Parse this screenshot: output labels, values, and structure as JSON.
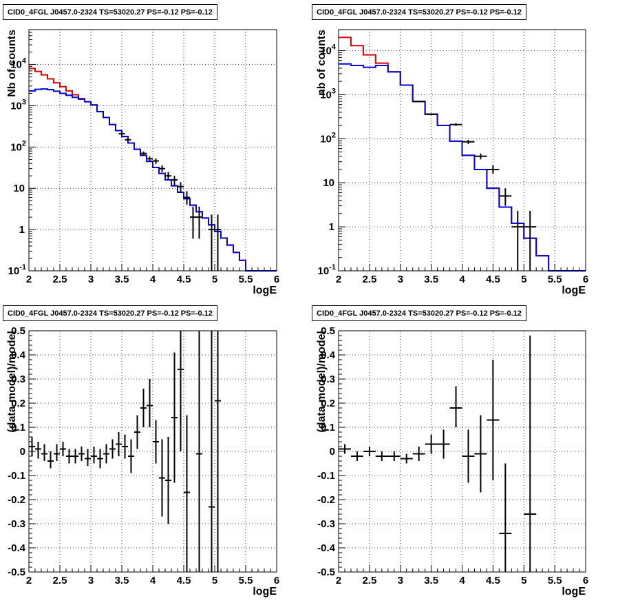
{
  "chart_data": [
    {
      "type": "line",
      "title": "CID0_4FGL J0457.0-2324 TS=53020.27 PS=-0.12 PS=-0.12",
      "xlabel": "logE",
      "ylabel": "Nb of counts",
      "xlim": [
        2,
        6
      ],
      "ylim": [
        0.1,
        70000
      ],
      "yscale": "log",
      "xticks": [
        "2",
        "2.5",
        "3",
        "3.5",
        "4",
        "4.5",
        "5",
        "5.5",
        "6"
      ],
      "yticks": [
        {
          "v": 0.1,
          "label": "10",
          "exp": "-1"
        },
        {
          "v": 1,
          "label": "1",
          "exp": ""
        },
        {
          "v": 10,
          "label": "10",
          "exp": ""
        },
        {
          "v": 100,
          "label": "10",
          "exp": "2"
        },
        {
          "v": 1000,
          "label": "10",
          "exp": "3"
        },
        {
          "v": 10000,
          "label": "10",
          "exp": "4"
        }
      ],
      "grid": true,
      "bin_edges": [
        2.0,
        2.1,
        2.2,
        2.3,
        2.4,
        2.5,
        2.6,
        2.7,
        2.8,
        2.9,
        3.0,
        3.1,
        3.2,
        3.3,
        3.4,
        3.5,
        3.6,
        3.7,
        3.8,
        3.9,
        4.0,
        4.1,
        4.2,
        4.3,
        4.4,
        4.5,
        4.6,
        4.7,
        4.8,
        4.9,
        5.0,
        5.1,
        5.2,
        5.3,
        5.4,
        5.5,
        5.6,
        5.7,
        5.8,
        5.9,
        6.0
      ],
      "series": [
        {
          "color": "#dd0000",
          "style": "step",
          "values": [
            8000,
            6800,
            5600,
            4500,
            3600,
            2900,
            2300,
            1850,
            1500,
            1250,
            1050,
            720,
            520,
            350,
            250,
            180,
            125,
            88,
            63,
            45,
            32,
            23,
            16,
            11.5,
            8,
            5.6,
            3.9,
            2.7,
            1.9,
            1.3,
            0.9,
            0.62,
            0.42,
            0.28,
            0.18,
            0.1,
            0.1,
            0.1,
            0.1,
            0.1
          ]
        },
        {
          "color": "#0000dd",
          "style": "step",
          "values": [
            2300,
            2500,
            2550,
            2450,
            2250,
            2000,
            1800,
            1600,
            1450,
            1250,
            1050,
            720,
            520,
            350,
            250,
            180,
            125,
            88,
            63,
            45,
            32,
            23,
            16,
            11.5,
            8,
            5.6,
            3.9,
            2.7,
            1.9,
            1.3,
            0.9,
            0.62,
            0.42,
            0.28,
            0.18,
            0.1,
            0.1,
            0.1,
            0.1,
            0.1
          ]
        },
        {
          "color": "#000000",
          "style": "errorbar",
          "points": [
            {
              "x": 3.5,
              "y": 210,
              "xe": 0.05,
              "lo": 195,
              "hi": 225
            },
            {
              "x": 3.6,
              "y": 150,
              "xe": 0.05,
              "lo": 137,
              "hi": 163
            },
            {
              "x": 3.85,
              "y": 70,
              "xe": 0.05,
              "lo": 62,
              "hi": 78
            },
            {
              "x": 3.95,
              "y": 52,
              "xe": 0.05,
              "lo": 45,
              "hi": 59
            },
            {
              "x": 4.05,
              "y": 46,
              "xe": 0.05,
              "lo": 39,
              "hi": 53
            },
            {
              "x": 4.15,
              "y": 30,
              "xe": 0.05,
              "lo": 25,
              "hi": 36
            },
            {
              "x": 4.25,
              "y": 20,
              "xe": 0.05,
              "lo": 16,
              "hi": 25
            },
            {
              "x": 4.35,
              "y": 16,
              "xe": 0.05,
              "lo": 12,
              "hi": 20
            },
            {
              "x": 4.45,
              "y": 11,
              "xe": 0.05,
              "lo": 8,
              "hi": 14
            },
            {
              "x": 4.55,
              "y": 6,
              "xe": 0.05,
              "lo": 4,
              "hi": 8.5
            },
            {
              "x": 4.65,
              "y": 2,
              "xe": 0.05,
              "lo": 0.6,
              "hi": 3.6
            },
            {
              "x": 4.75,
              "y": 2,
              "xe": 0.05,
              "lo": 0.6,
              "hi": 3.6
            },
            {
              "x": 4.95,
              "y": 1,
              "xe": 0.05,
              "lo": 0.1,
              "hi": 2.3
            },
            {
              "x": 5.05,
              "y": 1,
              "xe": 0.05,
              "lo": 0.1,
              "hi": 2.3
            }
          ]
        }
      ]
    },
    {
      "type": "line",
      "title": "CID0_4FGL J0457.0-2324 TS=53020.27 PS=-0.12 PS=-0.12",
      "xlabel": "logE",
      "ylabel": "nb of counts",
      "xlim": [
        2,
        6
      ],
      "ylim": [
        0.1,
        30000
      ],
      "yscale": "log",
      "xticks": [
        "2",
        "2.5",
        "3",
        "3.5",
        "4",
        "4.5",
        "5",
        "5.5",
        "6"
      ],
      "yticks": [
        {
          "v": 0.1,
          "label": "10",
          "exp": "-1"
        },
        {
          "v": 1,
          "label": "1",
          "exp": ""
        },
        {
          "v": 10,
          "label": "10",
          "exp": ""
        },
        {
          "v": 100,
          "label": "10",
          "exp": "2"
        },
        {
          "v": 1000,
          "label": "10",
          "exp": "3"
        },
        {
          "v": 10000,
          "label": "10",
          "exp": "4"
        }
      ],
      "grid": true,
      "bin_edges": [
        2.0,
        2.2,
        2.4,
        2.6,
        2.8,
        3.0,
        3.2,
        3.4,
        3.6,
        3.8,
        4.0,
        4.2,
        4.4,
        4.6,
        4.8,
        5.0,
        5.2,
        5.4,
        5.6,
        5.8,
        6.0
      ],
      "series": [
        {
          "color": "#dd0000",
          "style": "step",
          "values": [
            20000,
            13000,
            8000,
            5200,
            3300,
            1650,
            700,
            360,
            200,
            88,
            42,
            20,
            7.5,
            2.8,
            1.2,
            0.55,
            0.22,
            0.1,
            0.1,
            0.1
          ]
        },
        {
          "color": "#0000dd",
          "style": "step",
          "values": [
            5000,
            4600,
            4200,
            4600,
            3300,
            1650,
            700,
            360,
            200,
            88,
            42,
            20,
            7.5,
            2.8,
            1.2,
            0.55,
            0.22,
            0.1,
            0.1,
            0.1
          ]
        },
        {
          "color": "#000000",
          "style": "errorbar",
          "points": [
            {
              "x": 3.3,
              "y": 700,
              "xe": 0.1,
              "lo": 690,
              "hi": 710
            },
            {
              "x": 3.5,
              "y": 360,
              "xe": 0.1,
              "lo": 350,
              "hi": 370
            },
            {
              "x": 3.9,
              "y": 210,
              "xe": 0.1,
              "lo": 195,
              "hi": 225
            },
            {
              "x": 4.1,
              "y": 85,
              "xe": 0.1,
              "lo": 76,
              "hi": 94
            },
            {
              "x": 4.3,
              "y": 40,
              "xe": 0.1,
              "lo": 34,
              "hi": 46
            },
            {
              "x": 4.5,
              "y": 20,
              "xe": 0.1,
              "lo": 16,
              "hi": 25
            },
            {
              "x": 4.7,
              "y": 5,
              "xe": 0.1,
              "lo": 3,
              "hi": 7.5
            },
            {
              "x": 4.9,
              "y": 1,
              "xe": 0.1,
              "lo": 0.1,
              "hi": 2.3
            },
            {
              "x": 5.1,
              "y": 1,
              "xe": 0.1,
              "lo": 0.1,
              "hi": 2.3
            }
          ]
        }
      ]
    },
    {
      "type": "scatter",
      "title": "CID0_4FGL J0457.0-2324 TS=53020.27 PS=-0.12 PS=-0.12",
      "xlabel": "logE",
      "ylabel": "(data-model)/model",
      "xlim": [
        2,
        6
      ],
      "ylim": [
        -0.5,
        0.5
      ],
      "yscale": "linear",
      "xticks": [
        "2",
        "2.5",
        "3",
        "3.5",
        "4",
        "4.5",
        "5",
        "5.5",
        "6"
      ],
      "yticks": [
        {
          "v": -0.5,
          "label": "-0.5"
        },
        {
          "v": -0.4,
          "label": "-0.4"
        },
        {
          "v": -0.3,
          "label": "-0.3"
        },
        {
          "v": -0.2,
          "label": "-0.2"
        },
        {
          "v": -0.1,
          "label": "-0.1"
        },
        {
          "v": 0,
          "label": "0"
        },
        {
          "v": 0.1,
          "label": "0.1"
        },
        {
          "v": 0.2,
          "label": "0.2"
        },
        {
          "v": 0.3,
          "label": "0.3"
        },
        {
          "v": 0.4,
          "label": "0.4"
        },
        {
          "v": 0.5,
          "label": "0.5"
        }
      ],
      "grid": true,
      "series": [
        {
          "color": "#000000",
          "style": "errorbar",
          "points": [
            {
              "x": 2.05,
              "y": 0.02,
              "xe": 0.05,
              "lo": -0.02,
              "hi": 0.06
            },
            {
              "x": 2.15,
              "y": 0.01,
              "xe": 0.05,
              "lo": -0.03,
              "hi": 0.04
            },
            {
              "x": 2.25,
              "y": -0.01,
              "xe": 0.05,
              "lo": -0.04,
              "hi": 0.03
            },
            {
              "x": 2.35,
              "y": -0.04,
              "xe": 0.05,
              "lo": -0.07,
              "hi": 0.0
            },
            {
              "x": 2.45,
              "y": -0.01,
              "xe": 0.05,
              "lo": -0.04,
              "hi": 0.03
            },
            {
              "x": 2.55,
              "y": 0.01,
              "xe": 0.05,
              "lo": -0.02,
              "hi": 0.04
            },
            {
              "x": 2.65,
              "y": -0.02,
              "xe": 0.05,
              "lo": -0.05,
              "hi": 0.01
            },
            {
              "x": 2.75,
              "y": -0.02,
              "xe": 0.05,
              "lo": -0.05,
              "hi": 0.01
            },
            {
              "x": 2.85,
              "y": -0.01,
              "xe": 0.05,
              "lo": -0.04,
              "hi": 0.02
            },
            {
              "x": 2.95,
              "y": -0.03,
              "xe": 0.05,
              "lo": -0.06,
              "hi": 0.01
            },
            {
              "x": 3.05,
              "y": -0.02,
              "xe": 0.05,
              "lo": -0.05,
              "hi": 0.02
            },
            {
              "x": 3.15,
              "y": -0.03,
              "xe": 0.05,
              "lo": -0.07,
              "hi": 0.01
            },
            {
              "x": 3.25,
              "y": -0.01,
              "xe": 0.05,
              "lo": -0.05,
              "hi": 0.03
            },
            {
              "x": 3.35,
              "y": 0.01,
              "xe": 0.05,
              "lo": -0.03,
              "hi": 0.05
            },
            {
              "x": 3.45,
              "y": 0.03,
              "xe": 0.05,
              "lo": -0.02,
              "hi": 0.08
            },
            {
              "x": 3.55,
              "y": 0.02,
              "xe": 0.05,
              "lo": -0.03,
              "hi": 0.07
            },
            {
              "x": 3.65,
              "y": -0.02,
              "xe": 0.05,
              "lo": -0.09,
              "hi": 0.05
            },
            {
              "x": 3.75,
              "y": 0.08,
              "xe": 0.05,
              "lo": 0.01,
              "hi": 0.15
            },
            {
              "x": 3.85,
              "y": 0.18,
              "xe": 0.05,
              "lo": 0.1,
              "hi": 0.26
            },
            {
              "x": 3.95,
              "y": 0.19,
              "xe": 0.05,
              "lo": 0.1,
              "hi": 0.3
            },
            {
              "x": 4.05,
              "y": 0.04,
              "xe": 0.05,
              "lo": -0.05,
              "hi": 0.13
            },
            {
              "x": 4.15,
              "y": -0.11,
              "xe": 0.05,
              "lo": -0.27,
              "hi": 0.05
            },
            {
              "x": 4.25,
              "y": -0.12,
              "xe": 0.05,
              "lo": -0.3,
              "hi": 0.06
            },
            {
              "x": 4.35,
              "y": 0.14,
              "xe": 0.05,
              "lo": -0.13,
              "hi": 0.41
            },
            {
              "x": 4.45,
              "y": 0.34,
              "xe": 0.05,
              "lo": 0.0,
              "hi": 0.5
            },
            {
              "x": 4.55,
              "y": -0.17,
              "xe": 0.05,
              "lo": -0.5,
              "hi": 0.15
            },
            {
              "x": 4.75,
              "y": -0.01,
              "xe": 0.05,
              "lo": -0.5,
              "hi": 0.5
            },
            {
              "x": 4.95,
              "y": -0.23,
              "xe": 0.05,
              "lo": -0.5,
              "hi": 0.5
            },
            {
              "x": 5.05,
              "y": 0.21,
              "xe": 0.05,
              "lo": -0.5,
              "hi": 0.5
            }
          ]
        }
      ]
    },
    {
      "type": "scatter",
      "title": "CID0_4FGL J0457.0-2324 TS=53020.27 PS=-0.12 PS=-0.12",
      "xlabel": "logE",
      "ylabel": "(data-model)/model",
      "xlim": [
        2,
        6
      ],
      "ylim": [
        -0.5,
        0.5
      ],
      "yscale": "linear",
      "xticks": [
        "2",
        "2.5",
        "3",
        "3.5",
        "4",
        "4.5",
        "5",
        "5.5",
        "6"
      ],
      "yticks": [
        {
          "v": -0.5,
          "label": "-0.5"
        },
        {
          "v": -0.4,
          "label": "-0.4"
        },
        {
          "v": -0.3,
          "label": "-0.3"
        },
        {
          "v": -0.2,
          "label": "-0.2"
        },
        {
          "v": -0.1,
          "label": "-0.1"
        },
        {
          "v": 0,
          "label": "0"
        },
        {
          "v": 0.1,
          "label": "0.1"
        },
        {
          "v": 0.2,
          "label": "0.2"
        },
        {
          "v": 0.3,
          "label": "0.3"
        },
        {
          "v": 0.4,
          "label": "0.4"
        },
        {
          "v": 0.5,
          "label": "0.5"
        }
      ],
      "grid": true,
      "series": [
        {
          "color": "#000000",
          "style": "errorbar",
          "points": [
            {
              "x": 2.1,
              "y": 0.01,
              "xe": 0.1,
              "lo": -0.01,
              "hi": 0.03
            },
            {
              "x": 2.3,
              "y": -0.02,
              "xe": 0.1,
              "lo": -0.04,
              "hi": 0.0
            },
            {
              "x": 2.5,
              "y": 0.0,
              "xe": 0.1,
              "lo": -0.02,
              "hi": 0.02
            },
            {
              "x": 2.7,
              "y": -0.02,
              "xe": 0.1,
              "lo": -0.04,
              "hi": 0.0
            },
            {
              "x": 2.9,
              "y": -0.02,
              "xe": 0.1,
              "lo": -0.04,
              "hi": 0.0
            },
            {
              "x": 3.1,
              "y": -0.03,
              "xe": 0.1,
              "lo": -0.05,
              "hi": -0.01
            },
            {
              "x": 3.3,
              "y": -0.01,
              "xe": 0.1,
              "lo": -0.04,
              "hi": 0.02
            },
            {
              "x": 3.5,
              "y": 0.03,
              "xe": 0.1,
              "lo": -0.01,
              "hi": 0.07
            },
            {
              "x": 3.7,
              "y": 0.03,
              "xe": 0.1,
              "lo": -0.03,
              "hi": 0.09
            },
            {
              "x": 3.9,
              "y": 0.18,
              "xe": 0.1,
              "lo": 0.1,
              "hi": 0.27
            },
            {
              "x": 4.1,
              "y": -0.02,
              "xe": 0.1,
              "lo": -0.13,
              "hi": 0.09
            },
            {
              "x": 4.3,
              "y": -0.01,
              "xe": 0.1,
              "lo": -0.17,
              "hi": 0.15
            },
            {
              "x": 4.5,
              "y": 0.13,
              "xe": 0.1,
              "lo": -0.12,
              "hi": 0.38
            },
            {
              "x": 4.7,
              "y": -0.34,
              "xe": 0.1,
              "lo": -0.5,
              "hi": -0.05
            },
            {
              "x": 5.1,
              "y": -0.26,
              "xe": 0.1,
              "lo": -0.5,
              "hi": 0.48
            }
          ]
        }
      ]
    }
  ]
}
